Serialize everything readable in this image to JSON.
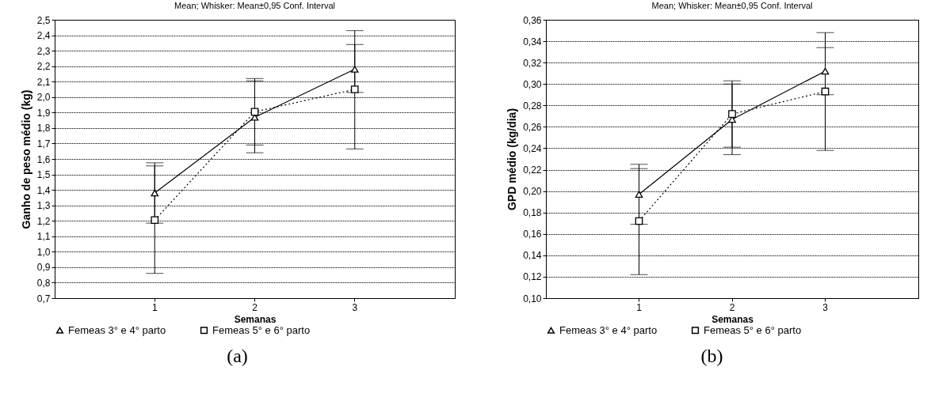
{
  "chart_data": [
    {
      "type": "line",
      "title": "Mean; Whisker: Mean±0,95 Conf. Interval",
      "xlabel": "Semanas",
      "ylabel": "Ganho de peso médio (kg)",
      "categories": [
        "1",
        "2",
        "3"
      ],
      "series": [
        {
          "name": "Femeas 3° e 4° parto",
          "color": "#000000",
          "marker": "triangle",
          "line_style": "solid",
          "values": [
            1.38,
            1.87,
            2.18
          ],
          "errors": [
            [
              1.185,
              1.575
            ],
            [
              1.64,
              2.105
            ],
            [
              2.03,
              2.34
            ]
          ]
        },
        {
          "name": "Femeas 5° e 6° parto",
          "color": "#000000",
          "marker": "square",
          "line_style": "dotted",
          "values": [
            1.205,
            1.905,
            2.05
          ],
          "errors": [
            [
              0.86,
              1.555
            ],
            [
              1.69,
              2.12
            ],
            [
              1.665,
              2.43
            ]
          ]
        }
      ],
      "ylim": [
        0.7,
        2.5
      ],
      "yticks": [
        {
          "value": 0.7,
          "label": "0,7"
        },
        {
          "value": 0.8,
          "label": "0,8"
        },
        {
          "value": 0.9,
          "label": "0,9"
        },
        {
          "value": 1.0,
          "label": "1,0"
        },
        {
          "value": 1.1,
          "label": "1,1"
        },
        {
          "value": 1.2,
          "label": "1,2"
        },
        {
          "value": 1.3,
          "label": "1,3"
        },
        {
          "value": 1.4,
          "label": "1,4"
        },
        {
          "value": 1.5,
          "label": "1,5"
        },
        {
          "value": 1.6,
          "label": "1,6"
        },
        {
          "value": 1.7,
          "label": "1,7"
        },
        {
          "value": 1.8,
          "label": "1,8"
        },
        {
          "value": 1.9,
          "label": "1,9"
        },
        {
          "value": 2.0,
          "label": "2,0"
        },
        {
          "value": 2.1,
          "label": "2,1"
        },
        {
          "value": 2.2,
          "label": "2,2"
        },
        {
          "value": 2.3,
          "label": "2,3"
        },
        {
          "value": 2.4,
          "label": "2,4"
        },
        {
          "value": 2.5,
          "label": "2,5"
        }
      ],
      "grid": "y",
      "legend": "bottom",
      "annotations": [
        "(a)"
      ]
    },
    {
      "type": "line",
      "title": "Mean; Whisker: Mean±0,95 Conf. Interval",
      "xlabel": "Semanas",
      "ylabel": "GPD médio (kg/dia)",
      "categories": [
        "1",
        "2",
        "3"
      ],
      "series": [
        {
          "name": "Femeas 3° e 4° parto",
          "color": "#000000",
          "marker": "triangle",
          "line_style": "solid",
          "values": [
            0.197,
            0.267,
            0.312
          ],
          "errors": [
            [
              0.169,
              0.225
            ],
            [
              0.234,
              0.3
            ],
            [
              0.29,
              0.334
            ]
          ]
        },
        {
          "name": "Femeas 5° e 6° parto",
          "color": "#000000",
          "marker": "square",
          "line_style": "dotted",
          "values": [
            0.172,
            0.272,
            0.293
          ],
          "errors": [
            [
              0.122,
              0.221
            ],
            [
              0.241,
              0.303
            ],
            [
              0.238,
              0.348
            ]
          ]
        }
      ],
      "ylim": [
        0.1,
        0.36
      ],
      "yticks": [
        {
          "value": 0.1,
          "label": "0,10"
        },
        {
          "value": 0.12,
          "label": "0,12"
        },
        {
          "value": 0.14,
          "label": "0,14"
        },
        {
          "value": 0.16,
          "label": "0,16"
        },
        {
          "value": 0.18,
          "label": "0,18"
        },
        {
          "value": 0.2,
          "label": "0,20"
        },
        {
          "value": 0.22,
          "label": "0,22"
        },
        {
          "value": 0.24,
          "label": "0,24"
        },
        {
          "value": 0.26,
          "label": "0,26"
        },
        {
          "value": 0.28,
          "label": "0,28"
        },
        {
          "value": 0.3,
          "label": "0,30"
        },
        {
          "value": 0.32,
          "label": "0,32"
        },
        {
          "value": 0.34,
          "label": "0,34"
        },
        {
          "value": 0.36,
          "label": "0,36"
        }
      ],
      "grid": "y",
      "legend": "bottom",
      "annotations": [
        "(b)"
      ]
    }
  ]
}
